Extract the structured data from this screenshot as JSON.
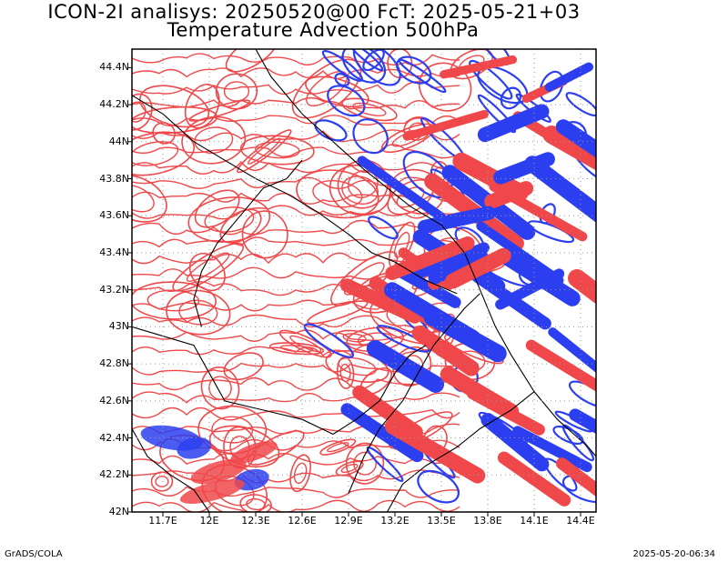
{
  "title_line1": "ICON-2I analisys: 20250520@00 FcT: 2025-05-21+03",
  "title_line2": "Temperature Advection 500hPa",
  "lat_labels": [
    "44.4N",
    "44.2N",
    "44N",
    "43.8N",
    "43.6N",
    "43.4N",
    "43.2N",
    "43N",
    "42.8N",
    "42.6N",
    "42.4N",
    "42.2N",
    "42N"
  ],
  "lon_labels": [
    "11.7E",
    "12E",
    "12.3E",
    "12.6E",
    "12.9E",
    "13.2E",
    "13.5E",
    "13.8E",
    "14.1E",
    "14.4E"
  ],
  "footer_left": "GrADS/COLA",
  "footer_right": "2025-05-20-06:34",
  "map": {
    "lon_range": [
      11.5,
      14.5
    ],
    "lat_range": [
      42.0,
      44.5
    ],
    "colors": {
      "warm": "#f0484a",
      "cold": "#2c3ff0",
      "border": "#000000",
      "grid": "#9a9a9a"
    }
  }
}
